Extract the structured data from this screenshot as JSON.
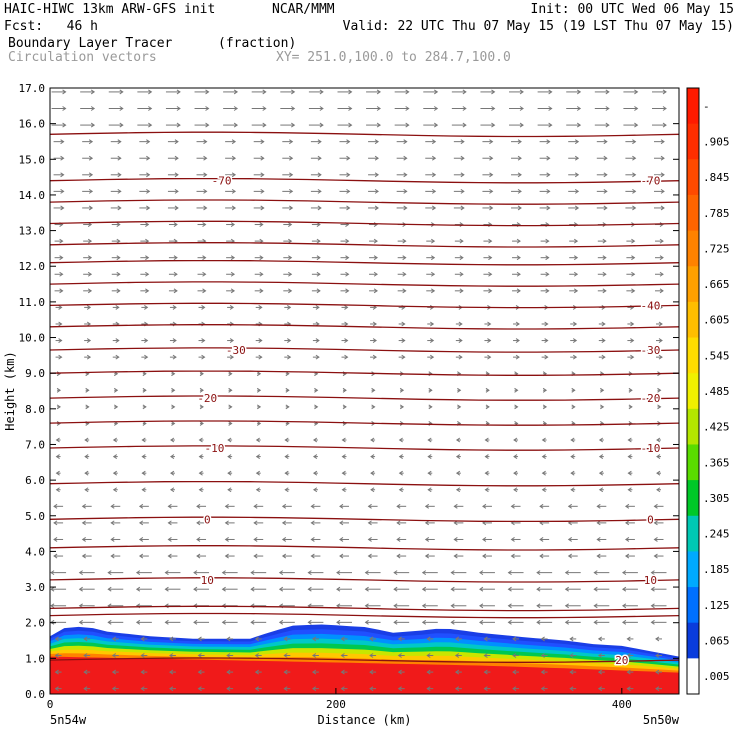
{
  "header": {
    "model": "HAIC-HIWC 13km ARW-GFS init",
    "org": "NCAR/MMM",
    "init": "Init: 00 UTC Wed 06 May 15",
    "fcst": "Fcst:   46 h",
    "valid": "Valid: 22 UTC Thu 07 May 15 (19 LST Thu 07 May 15)",
    "field": "Boundary Layer Tracer",
    "units": "(fraction)",
    "vectors": "Circulation vectors",
    "xy": "XY= 251.0,100.0 to 284.7,100.0"
  },
  "chart_data": {
    "type": "heatmap",
    "title": "Boundary Layer Tracer",
    "units": "(fraction)",
    "xlabel": "Distance (km)",
    "ylabel": "Height (km)",
    "xlim": [
      0,
      440
    ],
    "ylim": [
      0,
      17
    ],
    "x_ticks": [
      "0",
      "200",
      "400"
    ],
    "y_ticks": [
      "0.0",
      "1.0",
      "2.0",
      "3.0",
      "4.0",
      "5.0",
      "6.0",
      "7.0",
      "8.0",
      "9.0",
      "10.0",
      "11.0",
      "12.0",
      "13.0",
      "14.0",
      "15.0",
      "16.0",
      "17.0"
    ],
    "left_endpoint": "5n54w",
    "right_endpoint": "5n50w",
    "colorbar": {
      "labels": [
        "-",
        ".905",
        ".845",
        ".785",
        ".725",
        ".665",
        ".605",
        ".545",
        ".485",
        ".425",
        ".365",
        ".305",
        ".245",
        ".185",
        ".125",
        ".065",
        ".005"
      ],
      "colors": [
        "#ff1a00",
        "#ff2e00",
        "#ff4a00",
        "#ff6400",
        "#ff8200",
        "#ffa000",
        "#ffbe00",
        "#ffdc00",
        "#f0f000",
        "#b4e600",
        "#5adc00",
        "#00c828",
        "#00c8b4",
        "#00aaff",
        "#0070ff",
        "#0a3cdc",
        "#ffffff"
      ]
    },
    "tracer_top_km": [
      [
        0,
        1.62
      ],
      [
        10,
        1.85
      ],
      [
        25,
        1.9
      ],
      [
        40,
        1.75
      ],
      [
        70,
        1.62
      ],
      [
        100,
        1.55
      ],
      [
        140,
        1.55
      ],
      [
        155,
        1.75
      ],
      [
        170,
        1.92
      ],
      [
        190,
        1.95
      ],
      [
        220,
        1.88
      ],
      [
        240,
        1.72
      ],
      [
        260,
        1.78
      ],
      [
        275,
        1.85
      ],
      [
        300,
        1.72
      ],
      [
        330,
        1.6
      ],
      [
        360,
        1.5
      ],
      [
        380,
        1.4
      ],
      [
        400,
        1.35
      ],
      [
        420,
        1.2
      ],
      [
        440,
        1.05
      ]
    ],
    "tracer_core_top_km": [
      [
        0,
        1.05
      ],
      [
        60,
        1.0
      ],
      [
        120,
        0.95
      ],
      [
        180,
        0.9
      ],
      [
        240,
        0.85
      ],
      [
        300,
        0.8
      ],
      [
        360,
        0.72
      ],
      [
        400,
        0.66
      ],
      [
        440,
        0.6
      ]
    ],
    "temperature_contours": [
      {
        "label": "-70",
        "z": 14.4,
        "label_x": [
          120,
          420
        ]
      },
      {
        "label": "-40",
        "z": 10.9,
        "label_x": [
          420
        ]
      },
      {
        "label": "-30",
        "z": 9.65,
        "label_x": [
          130,
          420
        ]
      },
      {
        "label": "-20",
        "z": 8.3,
        "label_x": [
          110,
          420
        ]
      },
      {
        "label": "-10",
        "z": 6.9,
        "label_x": [
          115,
          420
        ]
      },
      {
        "label": "0",
        "z": 4.9,
        "label_x": [
          110,
          420
        ]
      },
      {
        "label": "10",
        "z": 3.2,
        "label_x": [
          110,
          420
        ]
      },
      {
        "label": "20",
        "z": 0.95,
        "label_x": [
          400
        ]
      }
    ],
    "unlabeled_contour_z": [
      15.7,
      13.8,
      13.2,
      12.6,
      12.1,
      11.5,
      10.3,
      9.0,
      7.6,
      5.9,
      4.1,
      2.4,
      2.2
    ]
  }
}
